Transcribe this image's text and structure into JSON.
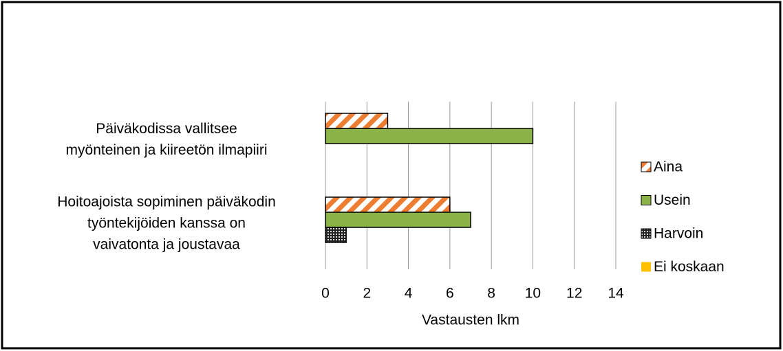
{
  "chart_data": {
    "type": "bar",
    "orientation": "horizontal",
    "categories": [
      "Päiväkodissa vallitsee\nmyönteinen ja kiireetön ilmapiiri",
      "Hoitoajoista sopiminen päiväkodin\ntyöntekijöiden kanssa on\nvaivatonta ja joustavaa"
    ],
    "series": [
      {
        "name": "Aina",
        "color": "#ed7d31",
        "pattern": "stripes",
        "values": [
          3,
          6
        ]
      },
      {
        "name": "Usein",
        "color": "#8cb34a",
        "pattern": "solid",
        "values": [
          10,
          7
        ]
      },
      {
        "name": "Harvoin",
        "color": "#404040",
        "pattern": "dots",
        "values": [
          0,
          1
        ]
      },
      {
        "name": "Ei koskaan",
        "color": "#ffc000",
        "pattern": "solid",
        "values": [
          0,
          0
        ]
      }
    ],
    "xlabel": "Vastausten lkm",
    "xlim": [
      0,
      14
    ],
    "xticks": [
      0,
      2,
      4,
      6,
      8,
      10,
      12,
      14
    ],
    "grid": true,
    "legend": "right"
  }
}
